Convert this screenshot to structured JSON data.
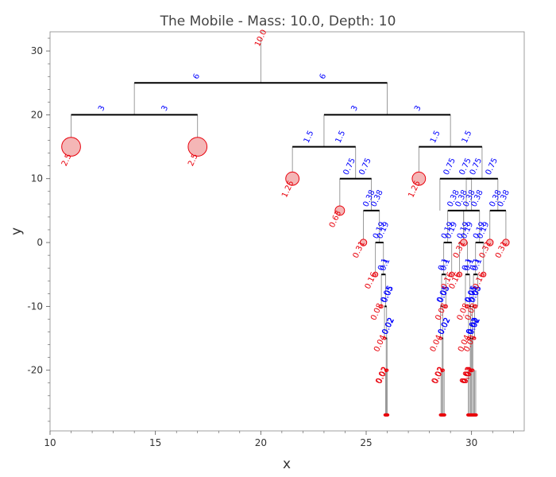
{
  "chart_data": {
    "type": "tree-diagram",
    "title": "The Mobile  -  Mass: 10.0, Depth: 10",
    "xlabel": "x",
    "ylabel": "y",
    "xlim": [
      10,
      32.5
    ],
    "ylim": [
      -29.5,
      33
    ],
    "xticks": [
      10,
      15,
      20,
      25,
      30
    ],
    "yticks": [
      -20,
      -10,
      0,
      10,
      20,
      30
    ],
    "colors": {
      "string": "#808080",
      "bar": "#000000",
      "mass": "#e8000b",
      "mass_fill": "#f4b6b6",
      "arm_label": "#0000ff",
      "mass_label": "#e8000b"
    },
    "nodes": [
      {
        "id": "root",
        "x": 20,
        "y": 25,
        "l": 6,
        "r": 6,
        "left": "A",
        "right": "B"
      },
      {
        "id": "A",
        "x": 14,
        "y": 20,
        "l": 3,
        "r": 3,
        "left": "A1",
        "right": "A2"
      },
      {
        "id": "B",
        "x": 26,
        "y": 20,
        "l": 3,
        "r": 3,
        "left": "B1",
        "right": "B2"
      },
      {
        "id": "B1",
        "x": 23,
        "y": 15,
        "l": 1.5,
        "r": 1.5,
        "left": "B1L",
        "right": "B1R"
      },
      {
        "id": "B2",
        "x": 29,
        "y": 15,
        "l": 1.5,
        "r": 1.5,
        "left": "B2L",
        "right": "B2R"
      },
      {
        "id": "B1R",
        "x": 24.5,
        "y": 10,
        "l": 0.75,
        "r": 0.75,
        "left": "B1R_L",
        "right": "B1R_R"
      },
      {
        "id": "B2R",
        "x": 30.5,
        "y": 10,
        "l": 0.75,
        "r": 0.75,
        "left": "B2R_L",
        "right": "B2R_R"
      },
      {
        "id": "B2L",
        "x": 29.25,
        "y": 10,
        "l": 0.75,
        "r": 0.75,
        "left": "B2L_L",
        "right": "B2L_R"
      },
      {
        "id": "B1R_R",
        "x": 25.25,
        "y": 5,
        "l": 0.38,
        "r": 0.38,
        "left": "a1",
        "right": "a2"
      },
      {
        "id": "B2L_R",
        "x": 30,
        "y": 5,
        "l": 0.38,
        "r": 0.38,
        "left": "b1",
        "right": "b2"
      },
      {
        "id": "B2R_R",
        "x": 31.25,
        "y": 5,
        "l": 0.38,
        "r": 0.38,
        "left": "c1",
        "right": "c2"
      },
      {
        "id": "B2L_L",
        "x": 29.25,
        "y": 5,
        "l": 0.38,
        "r": 0.38,
        "left": "d1",
        "right": "d2"
      },
      {
        "id": "a2",
        "x": 25.63,
        "y": 0,
        "l": 0.19,
        "r": 0.19,
        "left": "a2L",
        "right": "a2R"
      },
      {
        "id": "b1",
        "x": 29.62,
        "y": 0,
        "l": 0.19,
        "r": 0.19,
        "left": "b1L",
        "right": "b1R"
      },
      {
        "id": "b2",
        "x": 30.38,
        "y": 0,
        "l": 0.19,
        "r": 0.19,
        "left": "b2L",
        "right": "b2R"
      },
      {
        "id": "d1",
        "x": 28.87,
        "y": 0,
        "l": 0.19,
        "r": 0.19,
        "left": "d1L",
        "right": "d1R"
      },
      {
        "id": "a2R",
        "x": 25.82,
        "y": -5,
        "l": 0.1,
        "r": 0.1,
        "left": "a2RL",
        "right": "a2RR"
      },
      {
        "id": "b1R",
        "x": 29.81,
        "y": -5,
        "l": 0.1,
        "r": 0.1,
        "left": "b1RL",
        "right": "b1RR"
      },
      {
        "id": "b2L",
        "x": 30.19,
        "y": -5,
        "l": 0.1,
        "r": 0.1,
        "left": "b2LL",
        "right": "b2LR"
      },
      {
        "id": "d1L",
        "x": 28.68,
        "y": -5,
        "l": 0.1,
        "r": 0.1,
        "left": "d1LL",
        "right": "d1LR"
      },
      {
        "id": "a2RR",
        "x": 25.92,
        "y": -10,
        "l": 0.05,
        "r": 0.05,
        "left": "x1",
        "right": "x2"
      },
      {
        "id": "b1RR",
        "x": 29.91,
        "y": -10,
        "l": 0.05,
        "r": 0.05,
        "left": "x3",
        "right": "x4"
      },
      {
        "id": "b2LL",
        "x": 30.09,
        "y": -10,
        "l": 0.05,
        "r": 0.05,
        "left": "x5",
        "right": "x6"
      },
      {
        "id": "d1LL",
        "x": 28.58,
        "y": -10,
        "l": 0.05,
        "r": 0.05,
        "left": "x7",
        "right": "x8"
      },
      {
        "id": "x2",
        "x": 25.97,
        "y": -15,
        "l": 0.02,
        "r": 0.02,
        "left": "y1",
        "right": "y2"
      },
      {
        "id": "x4",
        "x": 29.96,
        "y": -15,
        "l": 0.02,
        "r": 0.02,
        "left": "y3",
        "right": "y4"
      },
      {
        "id": "x5",
        "x": 30.04,
        "y": -15,
        "l": 0.02,
        "r": 0.02,
        "left": "y5",
        "right": "y6"
      },
      {
        "id": "x8",
        "x": 28.63,
        "y": -15,
        "l": 0.02,
        "r": 0.02,
        "left": "y7",
        "right": "y8"
      }
    ],
    "masses": [
      {
        "id": "A1",
        "x": 11,
        "y": 15,
        "m": 2.5,
        "label": "2.5"
      },
      {
        "id": "A2",
        "x": 17,
        "y": 15,
        "m": 2.5,
        "label": "2.5"
      },
      {
        "id": "B1L",
        "x": 21.5,
        "y": 10,
        "m": 1.25,
        "label": "1.25"
      },
      {
        "id": "B2L_hidden",
        "x": 27.5,
        "y": 10,
        "m": 1.25,
        "label": "1.25"
      },
      {
        "id": "B1R_L",
        "x": 23.75,
        "y": 5,
        "m": 0.63,
        "label": "0.63"
      },
      {
        "id": "a1",
        "x": 24.87,
        "y": 0,
        "m": 0.31,
        "label": "0.31"
      },
      {
        "id": "c1",
        "x": 30.87,
        "y": 0,
        "m": 0.31,
        "label": "0.31"
      },
      {
        "id": "c2",
        "x": 31.63,
        "y": 0,
        "m": 0.31,
        "label": "0.31"
      },
      {
        "id": "d2",
        "x": 29.63,
        "y": 0,
        "m": 0.31,
        "label": "0.31"
      },
      {
        "id": "a2L",
        "x": 25.44,
        "y": -5,
        "m": 0.16,
        "label": "0.16"
      },
      {
        "id": "b1L",
        "x": 29.43,
        "y": -5,
        "m": 0.16,
        "label": "0.16"
      },
      {
        "id": "b2R",
        "x": 30.57,
        "y": -5,
        "m": 0.16,
        "label": "0.16"
      },
      {
        "id": "d1R",
        "x": 29.06,
        "y": -5,
        "m": 0.16,
        "label": "0.16"
      },
      {
        "id": "a2RL",
        "x": 25.72,
        "y": -10,
        "m": 0.08,
        "label": "0.08"
      },
      {
        "id": "b1RL",
        "x": 29.81,
        "y": -10,
        "m": 0.08,
        "label": "0.08"
      },
      {
        "id": "b2LR",
        "x": 30.19,
        "y": -10,
        "m": 0.08,
        "label": "0.08"
      },
      {
        "id": "d1LR",
        "x": 28.78,
        "y": -10,
        "m": 0.08,
        "label": "0.08"
      },
      {
        "id": "x1",
        "x": 25.87,
        "y": -15,
        "m": 0.04,
        "label": "0.04"
      },
      {
        "id": "x3",
        "x": 29.86,
        "y": -15,
        "m": 0.04,
        "label": "0.04"
      },
      {
        "id": "x6",
        "x": 30.14,
        "y": -15,
        "m": 0.04,
        "label": "0.04"
      },
      {
        "id": "x7",
        "x": 28.53,
        "y": -15,
        "m": 0.04,
        "label": "0.04"
      },
      {
        "id": "y1",
        "x": 25.95,
        "y": -20,
        "m": 0.02,
        "label": "0.02"
      },
      {
        "id": "y2",
        "x": 25.99,
        "y": -20,
        "m": 0.02,
        "label": "0.02"
      },
      {
        "id": "y3",
        "x": 29.94,
        "y": -20,
        "m": 0.02,
        "label": "0.02"
      },
      {
        "id": "y4",
        "x": 29.98,
        "y": -20,
        "m": 0.02,
        "label": "0.02"
      },
      {
        "id": "y5",
        "x": 30.02,
        "y": -20,
        "m": 0.02,
        "label": "0.02"
      },
      {
        "id": "y6",
        "x": 30.06,
        "y": -20,
        "m": 0.02,
        "label": "0.02"
      },
      {
        "id": "y7",
        "x": 28.61,
        "y": -20,
        "m": 0.02,
        "label": "0.02"
      },
      {
        "id": "y8",
        "x": 28.65,
        "y": -20,
        "m": 0.02,
        "label": "0.02"
      }
    ],
    "root_string_label": "10.0"
  }
}
